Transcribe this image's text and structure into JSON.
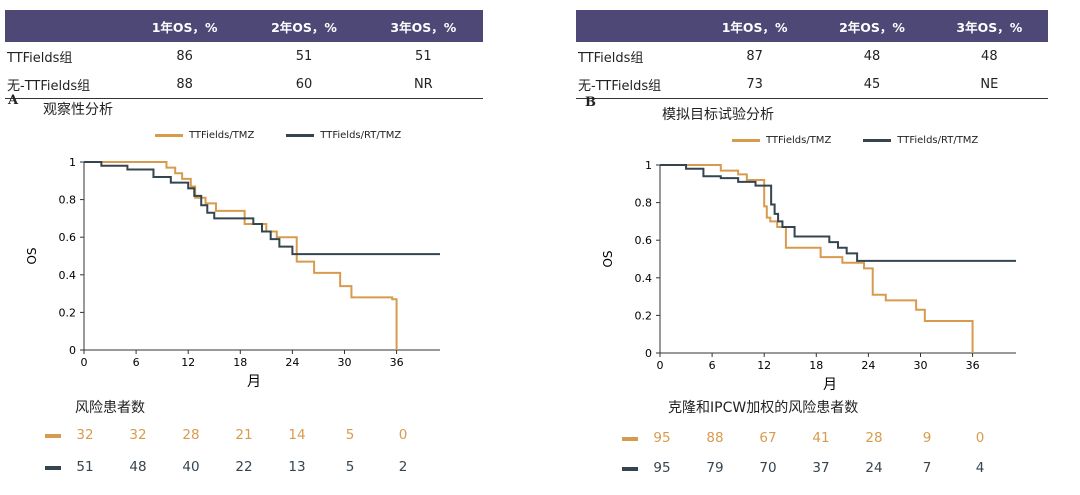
{
  "colors": {
    "header_bg": "#4e4877",
    "orange": "#d89b4e",
    "dark": "#354550"
  },
  "panel_a": {
    "letter": "A",
    "title": "观察性分析",
    "table": {
      "headers": [
        "",
        "1年OS，%",
        "2年OS，%",
        "3年OS，%"
      ],
      "rows": [
        [
          "TTFields组",
          "86",
          "51",
          "51"
        ],
        [
          "无-TTFields组",
          "88",
          "60",
          "NR"
        ]
      ]
    },
    "risk_title": "风险患者数",
    "risk_rows": [
      {
        "color": "orange",
        "values": [
          "32",
          "32",
          "28",
          "21",
          "14",
          "5",
          "0"
        ]
      },
      {
        "color": "dark",
        "values": [
          "51",
          "48",
          "40",
          "22",
          "13",
          "5",
          "2"
        ]
      }
    ]
  },
  "panel_b": {
    "letter": "B",
    "title": "模拟目标试验分析",
    "table": {
      "headers": [
        "",
        "1年OS，%",
        "2年OS，%",
        "3年OS，%"
      ],
      "rows": [
        [
          "TTFields组",
          "87",
          "48",
          "48"
        ],
        [
          "无-TTFields组",
          "73",
          "45",
          "NE"
        ]
      ]
    },
    "risk_title": "克隆和IPCW加权的风险患者数",
    "risk_rows": [
      {
        "color": "orange",
        "values": [
          "95",
          "88",
          "67",
          "41",
          "28",
          "9",
          "0"
        ]
      },
      {
        "color": "dark",
        "values": [
          "95",
          "79",
          "70",
          "37",
          "24",
          "7",
          "4"
        ]
      }
    ]
  },
  "chart_data": [
    {
      "type": "line",
      "step": true,
      "panel": "A",
      "title": "观察性分析",
      "xlabel": "月",
      "ylabel": "OS",
      "xlim": [
        0,
        41
      ],
      "ylim": [
        0,
        1
      ],
      "xticks": [
        0,
        6,
        12,
        18,
        24,
        30,
        36
      ],
      "yticks": [
        0,
        0.2,
        0.4,
        0.6,
        0.8,
        1
      ],
      "ytick_labels": [
        "0",
        "0.2",
        "0.4",
        "0.6",
        "0.8",
        "1"
      ],
      "legend": "top",
      "series": [
        {
          "name": "TTFields/TMZ",
          "color": "orange",
          "x": [
            0,
            9.5,
            10.5,
            11.3,
            12.3,
            12.8,
            14,
            15.2,
            18.5,
            21,
            22.2,
            24.5,
            26.5,
            29.5,
            30.8,
            35.5,
            36
          ],
          "y": [
            1,
            0.97,
            0.94,
            0.91,
            0.87,
            0.81,
            0.78,
            0.74,
            0.67,
            0.63,
            0.6,
            0.47,
            0.41,
            0.34,
            0.28,
            0.27,
            0
          ]
        },
        {
          "name": "TTFields/RT/TMZ",
          "color": "dark",
          "x": [
            0,
            2,
            5,
            8,
            10,
            12,
            12.7,
            13.5,
            14.2,
            15,
            19.5,
            20.5,
            21.5,
            22.5,
            24,
            41
          ],
          "y": [
            1,
            0.98,
            0.96,
            0.92,
            0.89,
            0.86,
            0.82,
            0.77,
            0.73,
            0.7,
            0.67,
            0.63,
            0.59,
            0.55,
            0.51,
            0.51
          ]
        }
      ]
    },
    {
      "type": "line",
      "step": true,
      "panel": "B",
      "title": "模拟目标试验分析",
      "xlabel": "月",
      "ylabel": "OS",
      "xlim": [
        0,
        41
      ],
      "ylim": [
        0,
        1
      ],
      "xticks": [
        0,
        6,
        12,
        18,
        24,
        30,
        36
      ],
      "yticks": [
        0,
        0.2,
        0.4,
        0.6,
        0.8,
        1
      ],
      "ytick_labels": [
        "0",
        "0.2",
        "0.4",
        "0.6",
        "0.8",
        "1"
      ],
      "legend": "top",
      "series": [
        {
          "name": "TTFields/TMZ",
          "color": "orange",
          "x": [
            0,
            7,
            9,
            10,
            12,
            12.3,
            12.7,
            13.5,
            14.5,
            18.5,
            21,
            23.5,
            24.5,
            26,
            29.5,
            30.5,
            36
          ],
          "y": [
            1,
            0.97,
            0.95,
            0.92,
            0.78,
            0.72,
            0.7,
            0.67,
            0.56,
            0.51,
            0.48,
            0.45,
            0.31,
            0.28,
            0.23,
            0.17,
            0
          ]
        },
        {
          "name": "TTFields/RT/TMZ",
          "color": "dark",
          "x": [
            0,
            3,
            5,
            7,
            9,
            11,
            12.8,
            13.2,
            13.6,
            14.1,
            15.5,
            19.5,
            20.5,
            21.5,
            22.7,
            41
          ],
          "y": [
            1,
            0.98,
            0.94,
            0.93,
            0.91,
            0.89,
            0.79,
            0.74,
            0.7,
            0.67,
            0.62,
            0.59,
            0.56,
            0.53,
            0.49,
            0.49
          ]
        }
      ]
    }
  ]
}
